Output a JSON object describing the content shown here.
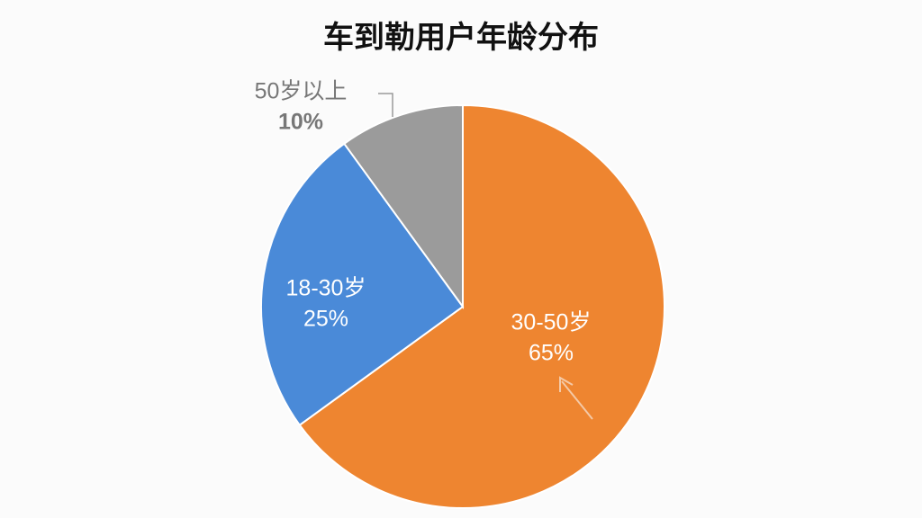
{
  "chart_data": {
    "type": "pie",
    "title": "车到勒用户年龄分布",
    "categories": [
      "30-50岁",
      "18-30岁",
      "50岁以上"
    ],
    "values": [
      65,
      25,
      10
    ],
    "value_labels": [
      "65%",
      "25%",
      "10%"
    ],
    "colors": [
      "#ee8530",
      "#4a8ad8",
      "#9b9b9b"
    ]
  }
}
